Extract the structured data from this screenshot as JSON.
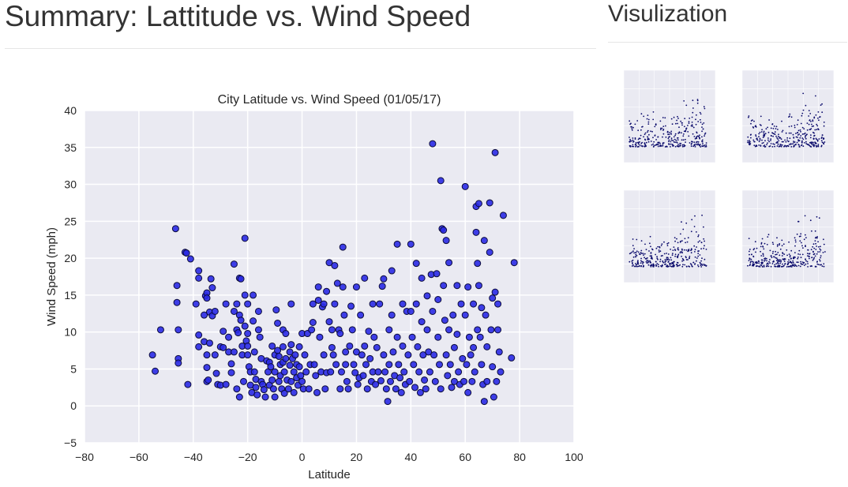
{
  "page": {
    "title": "Summary: Lattitude vs. Wind Speed",
    "sidebar_title": "Visulization"
  },
  "colors": {
    "plot_bg": "#eaeaf2",
    "grid": "#ffffff",
    "marker_fill": "#2a2ae6",
    "marker_edge": "#0c0c3a",
    "thumb_marker": "#0a0a6b"
  },
  "chart_data": {
    "type": "scatter",
    "title": "City Latitude vs. Wind Speed (01/05/17)",
    "xlabel": "Latitude",
    "ylabel": "Wind Speed (mph)",
    "xlim": [
      -80,
      100
    ],
    "ylim": [
      -5,
      40
    ],
    "xticks": [
      -80,
      -60,
      -40,
      -20,
      0,
      20,
      40,
      60,
      80,
      100
    ],
    "yticks": [
      -5,
      0,
      5,
      10,
      15,
      20,
      25,
      30,
      35,
      40
    ],
    "xtick_labels": [
      "−80",
      "−60",
      "−40",
      "−20",
      "0",
      "20",
      "40",
      "60",
      "80",
      "100"
    ],
    "ytick_labels": [
      "−5",
      "0",
      "5",
      "10",
      "15",
      "20",
      "25",
      "30",
      "35",
      "40"
    ],
    "grid": true,
    "points": [
      [
        -55,
        6.9
      ],
      [
        -54,
        4.7
      ],
      [
        -52,
        10.3
      ],
      [
        -46.5,
        24
      ],
      [
        -46,
        16.3
      ],
      [
        -46,
        14
      ],
      [
        -45.5,
        10.3
      ],
      [
        -45.5,
        6.4
      ],
      [
        -45.5,
        5.8
      ],
      [
        -43,
        20.8
      ],
      [
        -42.5,
        20.7
      ],
      [
        -42,
        2.9
      ],
      [
        -41,
        19.9
      ],
      [
        -39,
        13.8
      ],
      [
        -38,
        18.3
      ],
      [
        -38,
        17.3
      ],
      [
        -38,
        9.6
      ],
      [
        -38,
        8
      ],
      [
        -36,
        12.3
      ],
      [
        -36,
        8.7
      ],
      [
        -35.5,
        14.9
      ],
      [
        -35,
        15.3
      ],
      [
        -35,
        14.6
      ],
      [
        -35,
        6.9
      ],
      [
        -35,
        5.2
      ],
      [
        -35,
        3.3
      ],
      [
        -34.5,
        3.5
      ],
      [
        -34,
        8.5
      ],
      [
        -34,
        12.7
      ],
      [
        -33.5,
        17.2
      ],
      [
        -33,
        16
      ],
      [
        -33,
        12.2
      ],
      [
        -32,
        12.8
      ],
      [
        -32,
        6.9
      ],
      [
        -31.5,
        4.4
      ],
      [
        -31,
        2.9
      ],
      [
        -30,
        8
      ],
      [
        -30,
        2.8
      ],
      [
        -29,
        10.1
      ],
      [
        -29,
        7.9
      ],
      [
        -28,
        13.8
      ],
      [
        -28,
        2.9
      ],
      [
        -27,
        9.3
      ],
      [
        -27,
        7.3
      ],
      [
        -26,
        5.7
      ],
      [
        -26,
        4.5
      ],
      [
        -25,
        19.2
      ],
      [
        -25,
        12.8
      ],
      [
        -25,
        7.3
      ],
      [
        -24,
        13.8
      ],
      [
        -24,
        10.3
      ],
      [
        -24,
        2.3
      ],
      [
        -23.5,
        9.9
      ],
      [
        -23,
        17.3
      ],
      [
        -23,
        12.3
      ],
      [
        -23,
        1.2
      ],
      [
        -22.5,
        17.2
      ],
      [
        -22.5,
        11.6
      ],
      [
        -22,
        8.1
      ],
      [
        -22,
        6.9
      ],
      [
        -21.5,
        3.3
      ],
      [
        -21,
        22.7
      ],
      [
        -21,
        15
      ],
      [
        -21,
        10.8
      ],
      [
        -20.5,
        8.8
      ],
      [
        -20,
        13.8
      ],
      [
        -20,
        9.8
      ],
      [
        -20,
        8.1
      ],
      [
        -20,
        6.9
      ],
      [
        -19.5,
        5.3
      ],
      [
        -19,
        4.6
      ],
      [
        -19,
        2.8
      ],
      [
        -18.5,
        1.8
      ],
      [
        -18,
        15
      ],
      [
        -18,
        11.5
      ],
      [
        -17.5,
        7.3
      ],
      [
        -17.5,
        4.6
      ],
      [
        -17,
        3.6
      ],
      [
        -17,
        2.5
      ],
      [
        -16.5,
        1.5
      ],
      [
        -16,
        12.8
      ],
      [
        -16,
        10.3
      ],
      [
        -15.5,
        9.3
      ],
      [
        -15,
        6.4
      ],
      [
        -15,
        3.3
      ],
      [
        -14.5,
        2.9
      ],
      [
        -14,
        2.2
      ],
      [
        -13.5,
        1.2
      ],
      [
        -13,
        6.1
      ],
      [
        -12.5,
        4.6
      ],
      [
        -12,
        5.9
      ],
      [
        -12,
        2.8
      ],
      [
        -11.5,
        5.3
      ],
      [
        -11,
        8.1
      ],
      [
        -11,
        3.5
      ],
      [
        -10.5,
        2.3
      ],
      [
        -10,
        6.9
      ],
      [
        -10,
        4.6
      ],
      [
        -10,
        1.2
      ],
      [
        -9.5,
        13
      ],
      [
        -9,
        11.2
      ],
      [
        -9,
        7.5
      ],
      [
        -8.5,
        6.7
      ],
      [
        -8.5,
        3.3
      ],
      [
        -8,
        5.6
      ],
      [
        -8,
        4.1
      ],
      [
        -7.5,
        2.3
      ],
      [
        -7,
        10.3
      ],
      [
        -7,
        8
      ],
      [
        -7,
        5.9
      ],
      [
        -6.5,
        4.6
      ],
      [
        -6.5,
        1.7
      ],
      [
        -6,
        9.8
      ],
      [
        -6,
        6.4
      ],
      [
        -5.5,
        3.5
      ],
      [
        -5,
        2.3
      ],
      [
        -4.5,
        7.3
      ],
      [
        -4.5,
        5.5
      ],
      [
        -4,
        13.8
      ],
      [
        -4,
        8.3
      ],
      [
        -4,
        3.3
      ],
      [
        -3.5,
        6.4
      ],
      [
        -3,
        4.6
      ],
      [
        -3,
        1.8
      ],
      [
        -2.5,
        6.9
      ],
      [
        -2,
        5.6
      ],
      [
        -2,
        3.8
      ],
      [
        -1.5,
        2.8
      ],
      [
        -1,
        8
      ],
      [
        -1,
        5.3
      ],
      [
        -0.5,
        4.1
      ],
      [
        0,
        9.8
      ],
      [
        0,
        3.3
      ],
      [
        0.5,
        2.3
      ],
      [
        1,
        6.9
      ],
      [
        1.5,
        4.6
      ],
      [
        2,
        9.8
      ],
      [
        2.5,
        2.3
      ],
      [
        3,
        5.6
      ],
      [
        3.5,
        10.3
      ],
      [
        4,
        11.3
      ],
      [
        4,
        13.8
      ],
      [
        4.5,
        5.6
      ],
      [
        5,
        4.1
      ],
      [
        5.5,
        1.8
      ],
      [
        6,
        14.3
      ],
      [
        6,
        16.1
      ],
      [
        6.5,
        9.3
      ],
      [
        7,
        4.6
      ],
      [
        7.5,
        13.4
      ],
      [
        8,
        13.8
      ],
      [
        8,
        6.9
      ],
      [
        8.5,
        2.3
      ],
      [
        9,
        4.5
      ],
      [
        9,
        15.5
      ],
      [
        10,
        19.4
      ],
      [
        10,
        11.4
      ],
      [
        10.5,
        4.6
      ],
      [
        11,
        10.3
      ],
      [
        11,
        7.9
      ],
      [
        11.5,
        6.9
      ],
      [
        12,
        19
      ],
      [
        12,
        13.8
      ],
      [
        12.5,
        5.6
      ],
      [
        13,
        16.6
      ],
      [
        13.5,
        10.3
      ],
      [
        14,
        9.8
      ],
      [
        14,
        2.3
      ],
      [
        14.5,
        4.6
      ],
      [
        15,
        21.5
      ],
      [
        15,
        16.1
      ],
      [
        15.5,
        12.3
      ],
      [
        16,
        7.3
      ],
      [
        16,
        5.6
      ],
      [
        16.5,
        3.3
      ],
      [
        17,
        2.3
      ],
      [
        17.5,
        8.1
      ],
      [
        18,
        13.5
      ],
      [
        18.5,
        10.3
      ],
      [
        19,
        5.6
      ],
      [
        19.5,
        4.5
      ],
      [
        20,
        16.1
      ],
      [
        20,
        7.3
      ],
      [
        20.5,
        2.9
      ],
      [
        21,
        3.8
      ],
      [
        21.5,
        12.3
      ],
      [
        22,
        6.9
      ],
      [
        22.5,
        4.1
      ],
      [
        23,
        17.3
      ],
      [
        23,
        8.1
      ],
      [
        23.5,
        5.6
      ],
      [
        24,
        2.3
      ],
      [
        24.5,
        10.1
      ],
      [
        25,
        6.4
      ],
      [
        25.5,
        3.3
      ],
      [
        26,
        13.8
      ],
      [
        26,
        4.6
      ],
      [
        26.5,
        9.3
      ],
      [
        27,
        2.9
      ],
      [
        27.5,
        7.9
      ],
      [
        28,
        4.6
      ],
      [
        28.5,
        13.8
      ],
      [
        29,
        3.4
      ],
      [
        29.5,
        16.2
      ],
      [
        30,
        17.2
      ],
      [
        30,
        6.9
      ],
      [
        30.5,
        4.6
      ],
      [
        31,
        2.3
      ],
      [
        31.5,
        0.6
      ],
      [
        32,
        10.3
      ],
      [
        32,
        5.6
      ],
      [
        32.5,
        3.3
      ],
      [
        33,
        18.3
      ],
      [
        33,
        12.3
      ],
      [
        33.5,
        7.3
      ],
      [
        34,
        4.1
      ],
      [
        34.5,
        2.3
      ],
      [
        35,
        21.9
      ],
      [
        35,
        9.3
      ],
      [
        35.5,
        5.6
      ],
      [
        36,
        3.8
      ],
      [
        36.5,
        1.8
      ],
      [
        37,
        13.8
      ],
      [
        37,
        8.1
      ],
      [
        37.5,
        4.6
      ],
      [
        38,
        2.9
      ],
      [
        38.5,
        12.8
      ],
      [
        39,
        6.9
      ],
      [
        39.5,
        3.3
      ],
      [
        40,
        21.9
      ],
      [
        40,
        12.8
      ],
      [
        40.5,
        9.3
      ],
      [
        41,
        5.6
      ],
      [
        41.5,
        2.5
      ],
      [
        42,
        19.3
      ],
      [
        42,
        13.8
      ],
      [
        42.5,
        8
      ],
      [
        43,
        4.6
      ],
      [
        43.5,
        1.8
      ],
      [
        44,
        17.3
      ],
      [
        44,
        11.4
      ],
      [
        44.5,
        6.9
      ],
      [
        45,
        3.5
      ],
      [
        45.5,
        2.3
      ],
      [
        46,
        14.9
      ],
      [
        46,
        10.3
      ],
      [
        46.5,
        7.3
      ],
      [
        47,
        4.6
      ],
      [
        47.5,
        17.8
      ],
      [
        48,
        35.5
      ],
      [
        48,
        12.8
      ],
      [
        48.5,
        6.9
      ],
      [
        49,
        3.3
      ],
      [
        49.5,
        17.9
      ],
      [
        50,
        14.4
      ],
      [
        50,
        9.3
      ],
      [
        50.5,
        5.6
      ],
      [
        51,
        30.5
      ],
      [
        51,
        2.3
      ],
      [
        51.5,
        24
      ],
      [
        52,
        23.8
      ],
      [
        52,
        16.3
      ],
      [
        52.5,
        11.6
      ],
      [
        53,
        22.4
      ],
      [
        53,
        6.9
      ],
      [
        53.5,
        4.1
      ],
      [
        54,
        19.4
      ],
      [
        54,
        10.3
      ],
      [
        54.5,
        5.6
      ],
      [
        55,
        2.5
      ],
      [
        55.5,
        12.3
      ],
      [
        56,
        7.9
      ],
      [
        56,
        3.3
      ],
      [
        57,
        16.3
      ],
      [
        57,
        9.7
      ],
      [
        57.5,
        4.6
      ],
      [
        58,
        2.9
      ],
      [
        58.5,
        13.8
      ],
      [
        59,
        6.4
      ],
      [
        59.5,
        3.3
      ],
      [
        60,
        29.7
      ],
      [
        60,
        12.3
      ],
      [
        60.5,
        5.6
      ],
      [
        61,
        16.1
      ],
      [
        61,
        1.8
      ],
      [
        61.5,
        9.3
      ],
      [
        62,
        6.9
      ],
      [
        62.5,
        3.3
      ],
      [
        63,
        13.8
      ],
      [
        63,
        7.9
      ],
      [
        63.5,
        4.6
      ],
      [
        64,
        27
      ],
      [
        64,
        23.5
      ],
      [
        64.5,
        19.3
      ],
      [
        64.5,
        10.3
      ],
      [
        65,
        27.4
      ],
      [
        65,
        16.3
      ],
      [
        65.5,
        9.3
      ],
      [
        66,
        13.3
      ],
      [
        66,
        5.6
      ],
      [
        66.5,
        2.9
      ],
      [
        67,
        22.4
      ],
      [
        67,
        0.6
      ],
      [
        67.5,
        12.3
      ],
      [
        68,
        8
      ],
      [
        68,
        3.3
      ],
      [
        69,
        27.5
      ],
      [
        69,
        20.8
      ],
      [
        69.5,
        10.3
      ],
      [
        70,
        14.6
      ],
      [
        70,
        5.3
      ],
      [
        70.5,
        1.2
      ],
      [
        71,
        34.3
      ],
      [
        71,
        15.4
      ],
      [
        71.5,
        3.3
      ],
      [
        72,
        13.8
      ],
      [
        72,
        10.3
      ],
      [
        72.5,
        7.3
      ],
      [
        73,
        4.6
      ],
      [
        74,
        25.8
      ],
      [
        77,
        6.5
      ],
      [
        78,
        19.4
      ]
    ]
  }
}
